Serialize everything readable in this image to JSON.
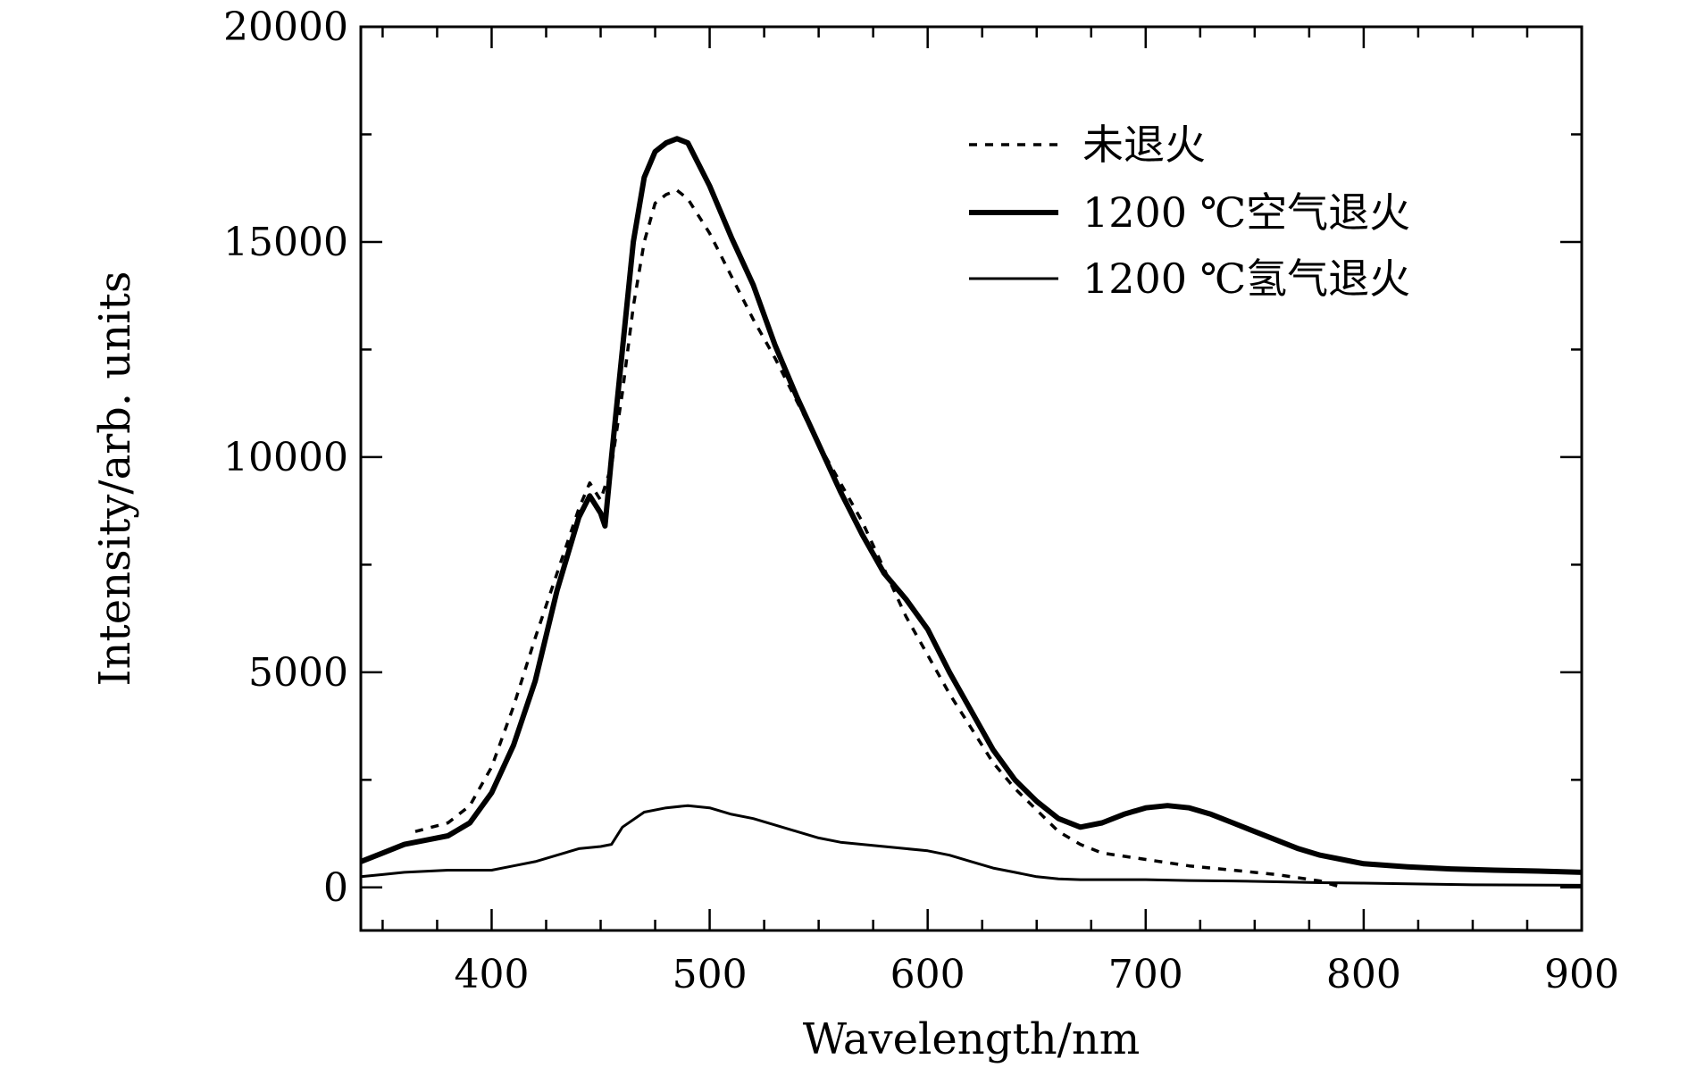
{
  "chart_data": {
    "type": "line",
    "title": "",
    "xlabel": "Wavelength/nm",
    "ylabel": "Intensity/arb. units",
    "xlim": [
      340,
      900
    ],
    "ylim": [
      -1000,
      20000
    ],
    "xticks": [
      400,
      500,
      600,
      700,
      800,
      900
    ],
    "xtick_labels": [
      "400",
      "500",
      "600",
      "700",
      "800",
      "900"
    ],
    "yticks": [
      0,
      5000,
      10000,
      15000,
      20000
    ],
    "ytick_labels": [
      "0",
      "5000",
      "10000",
      "15000",
      "20000"
    ],
    "grid": false,
    "legend_position": "top-right",
    "series": [
      {
        "name": "未退火",
        "style": "dotted",
        "x": [
          365,
          380,
          390,
          400,
          410,
          420,
          430,
          440,
          445,
          450,
          455,
          460,
          465,
          470,
          475,
          480,
          485,
          490,
          500,
          510,
          520,
          530,
          540,
          550,
          560,
          570,
          580,
          590,
          600,
          610,
          620,
          630,
          640,
          650,
          660,
          670,
          680,
          700,
          720,
          740,
          760,
          780,
          790
        ],
        "y": [
          1300,
          1500,
          1900,
          2800,
          4200,
          5800,
          7300,
          8800,
          9400,
          9000,
          9800,
          11500,
          13500,
          15000,
          15900,
          16100,
          16200,
          16000,
          15200,
          14200,
          13200,
          12300,
          11300,
          10300,
          9400,
          8500,
          7400,
          6300,
          5400,
          4500,
          3700,
          2900,
          2300,
          1800,
          1300,
          1000,
          800,
          650,
          500,
          400,
          300,
          150,
          0
        ]
      },
      {
        "name": "1200 ℃空气退火",
        "style": "thick",
        "x": [
          340,
          350,
          360,
          370,
          380,
          390,
          400,
          410,
          420,
          430,
          440,
          445,
          450,
          452,
          455,
          460,
          465,
          470,
          475,
          480,
          485,
          490,
          495,
          500,
          510,
          520,
          530,
          540,
          550,
          560,
          570,
          580,
          590,
          600,
          610,
          620,
          630,
          640,
          650,
          660,
          670,
          680,
          690,
          700,
          710,
          720,
          730,
          740,
          750,
          760,
          770,
          780,
          790,
          800,
          820,
          840,
          860,
          880,
          900
        ],
        "y": [
          600,
          800,
          1000,
          1100,
          1200,
          1500,
          2200,
          3300,
          4800,
          6900,
          8600,
          9100,
          8700,
          8400,
          10000,
          12500,
          15000,
          16500,
          17100,
          17300,
          17400,
          17300,
          16800,
          16300,
          15100,
          14000,
          12600,
          11400,
          10300,
          9200,
          8200,
          7300,
          6700,
          6000,
          5000,
          4100,
          3200,
          2500,
          2000,
          1600,
          1400,
          1500,
          1700,
          1850,
          1900,
          1850,
          1700,
          1500,
          1300,
          1100,
          900,
          750,
          650,
          550,
          480,
          430,
          400,
          380,
          350
        ]
      },
      {
        "name": "1200 ℃氢气退火",
        "style": "thin",
        "x": [
          340,
          350,
          360,
          380,
          400,
          410,
          420,
          430,
          440,
          450,
          455,
          460,
          470,
          480,
          490,
          500,
          510,
          520,
          530,
          540,
          550,
          560,
          570,
          580,
          590,
          600,
          610,
          620,
          630,
          640,
          650,
          660,
          670,
          680,
          700,
          720,
          740,
          760,
          780,
          800,
          850,
          900
        ],
        "y": [
          250,
          300,
          350,
          400,
          400,
          500,
          600,
          750,
          900,
          950,
          1000,
          1400,
          1750,
          1850,
          1900,
          1850,
          1700,
          1600,
          1450,
          1300,
          1150,
          1050,
          1000,
          950,
          900,
          850,
          750,
          600,
          450,
          350,
          250,
          200,
          180,
          180,
          180,
          160,
          150,
          130,
          110,
          100,
          60,
          50
        ]
      }
    ]
  }
}
